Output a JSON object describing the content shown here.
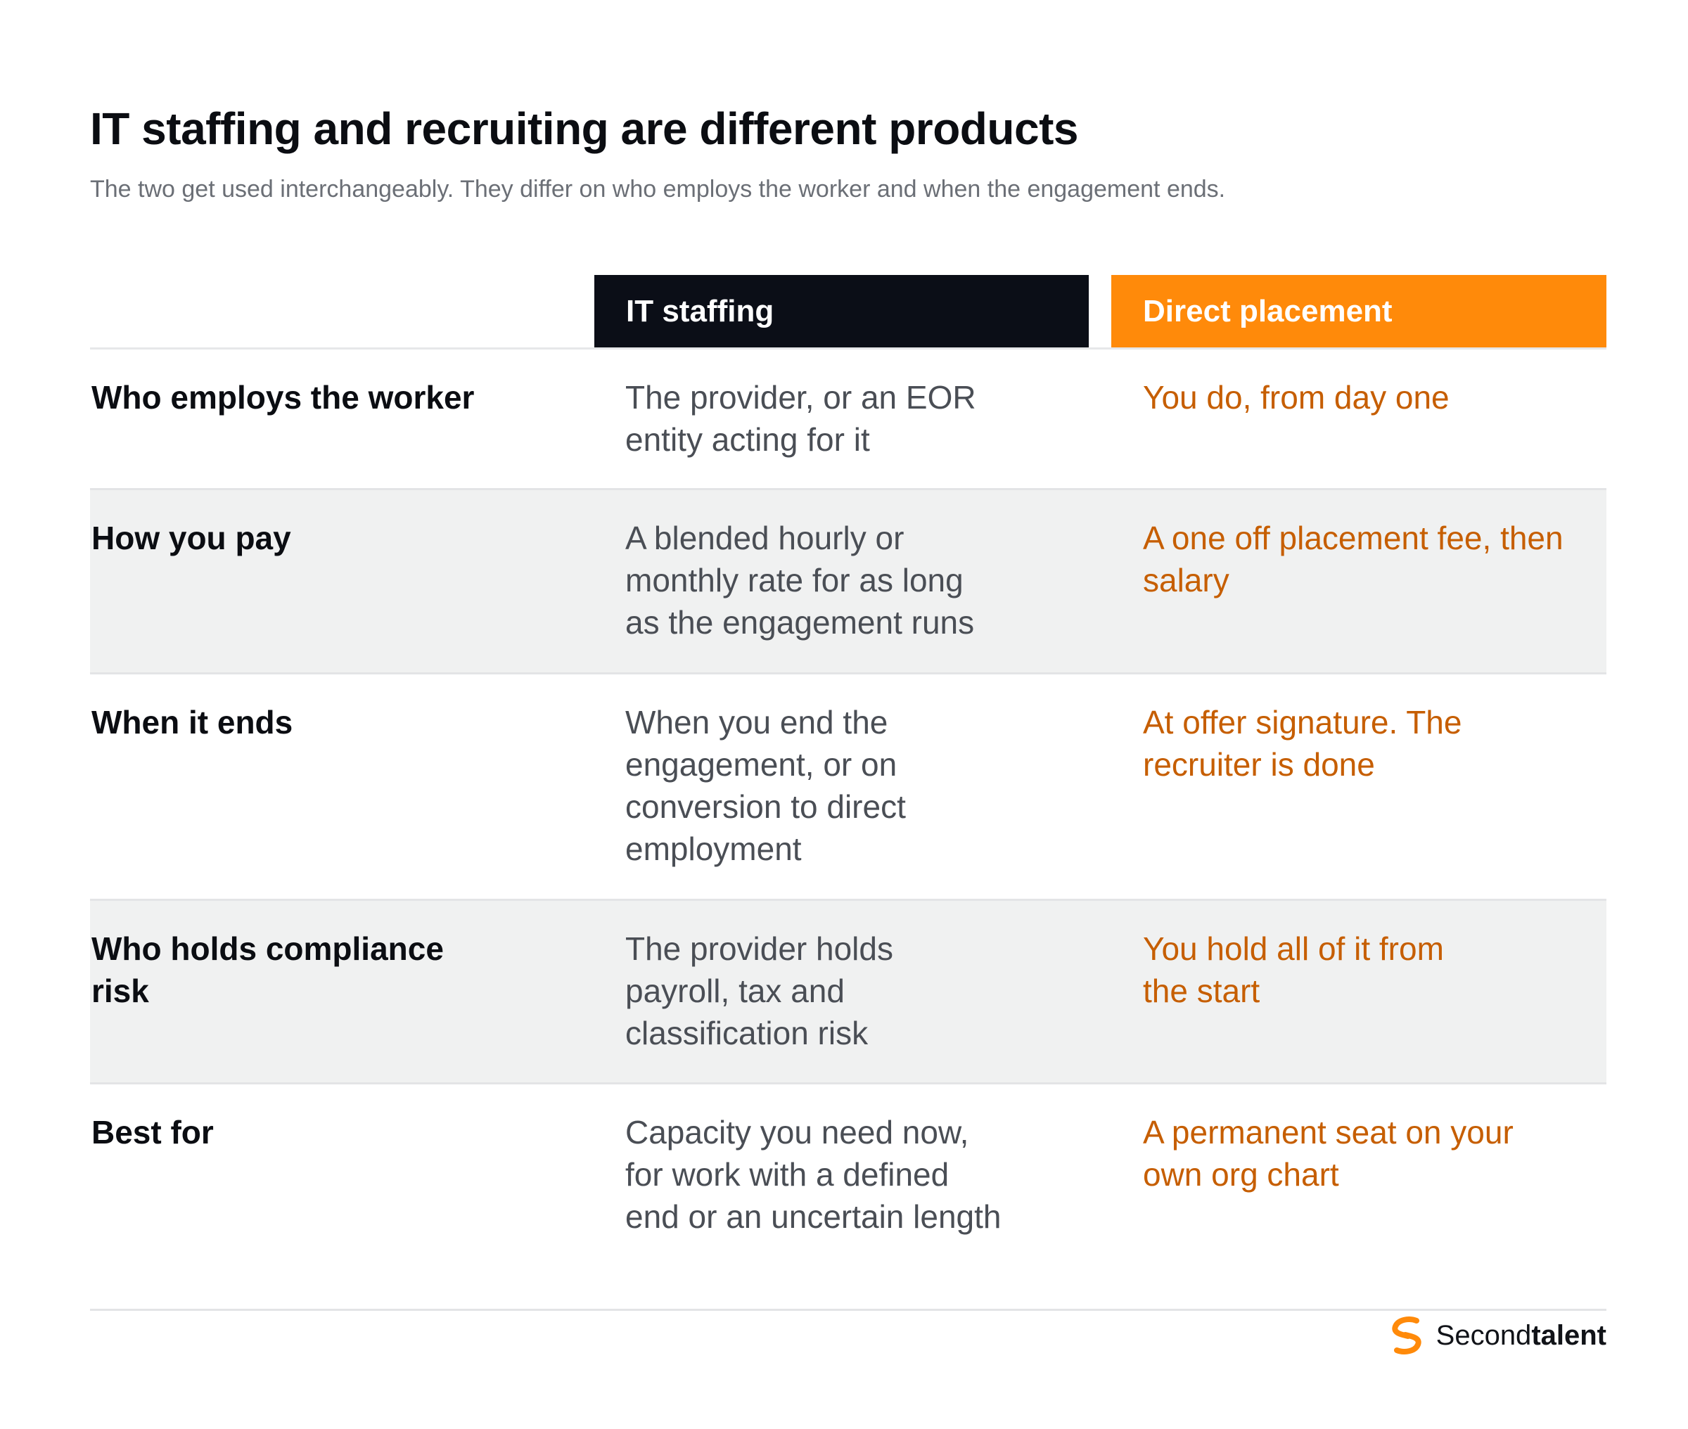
{
  "title": "IT staffing and recruiting are different products",
  "subtitle": "The two get used interchangeably. They differ on who employs the worker and when the engagement ends.",
  "columns": {
    "staffing": "IT staffing",
    "direct": "Direct placement"
  },
  "rows": [
    {
      "label": "Who employs the worker",
      "staffing": "The provider, or an EOR entity acting for it",
      "direct": "You do, from day one",
      "shaded": false
    },
    {
      "label": "How you pay",
      "staffing": "A blended hourly or monthly rate for as long as the engagement runs",
      "direct": "A one off placement fee, then salary",
      "shaded": true
    },
    {
      "label": "When it ends",
      "staffing": "When you end the engagement, or on conversion to direct employment",
      "direct": "At offer signature. The recruiter is done",
      "shaded": false
    },
    {
      "label": "Who holds compliance risk",
      "staffing": "The provider holds payroll, tax and classification risk",
      "direct": "You hold all of it from the start",
      "shaded": true
    },
    {
      "label": "Best for",
      "staffing": "Capacity you need now, for work with a defined end or an uncertain length",
      "direct": "A permanent seat on your own org chart",
      "shaded": false
    }
  ],
  "brand": {
    "name_regular": "Second",
    "name_bold": "talent",
    "icon": "secondtalent-logo-icon"
  },
  "colors": {
    "header_dark": "#0b0e17",
    "accent_orange": "#ff8a0a",
    "direct_text": "#c65e00",
    "shade": "#f0f1f1"
  }
}
